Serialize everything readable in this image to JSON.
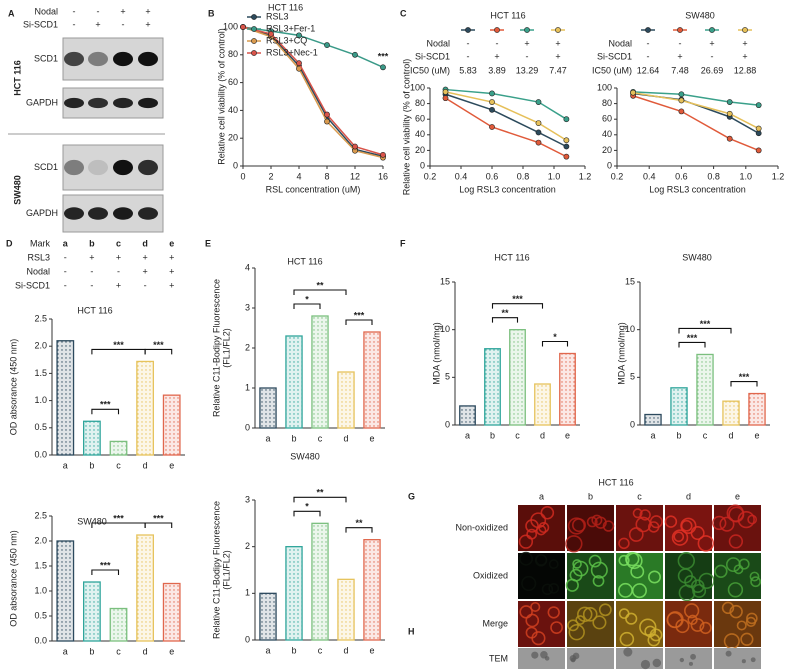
{
  "panel_labels": [
    "A",
    "B",
    "C",
    "D",
    "E",
    "F",
    "G",
    "H"
  ],
  "panel_a": {
    "header": [
      {
        "label": "Nodal",
        "cells": [
          "-",
          "-",
          "+",
          "+"
        ]
      },
      {
        "label": "Si-SCD1",
        "cells": [
          "-",
          "+",
          "-",
          "+"
        ]
      }
    ],
    "groups": [
      {
        "label": "HCT 116",
        "rows": [
          "SCD1",
          "GAPDH"
        ]
      },
      {
        "label": "SW480",
        "rows": [
          "SCD1",
          "GAPDH"
        ]
      }
    ]
  },
  "panel_d_header": {
    "rows": [
      {
        "label": "Mark",
        "cells": [
          "a",
          "b",
          "c",
          "d",
          "e"
        ]
      },
      {
        "label": "RSL3",
        "cells": [
          "-",
          "+",
          "+",
          "+",
          "+"
        ]
      },
      {
        "label": "Nodal",
        "cells": [
          "-",
          "-",
          "-",
          "+",
          "+"
        ]
      },
      {
        "label": "Si-SCD1",
        "cells": [
          "-",
          "-",
          "+",
          "-",
          "+"
        ]
      }
    ]
  },
  "panel_g": {
    "title": "HCT 116",
    "columns": [
      "a",
      "b",
      "c",
      "d",
      "e"
    ],
    "rows": [
      "Non-oxidized",
      "Oxidized",
      "Merge"
    ]
  },
  "panel_h": {
    "rows": [
      "TEM"
    ]
  },
  "chart_data": [
    {
      "type": "line",
      "title": "HCT 116",
      "x_label": "RSL concentration (uM)",
      "y_label": "Relative cell viability (% of control)",
      "categories": [
        "0",
        "2",
        "4",
        "8",
        "12",
        "16"
      ],
      "ylim": [
        0,
        100
      ],
      "yticks": [
        0,
        20,
        40,
        60,
        80,
        100
      ],
      "legend": "upper left",
      "annotation": "***",
      "series": [
        {
          "name": "RSL3",
          "color": "#2c4a5c",
          "values": [
            100,
            94,
            72,
            35,
            12,
            7
          ]
        },
        {
          "name": "RSL3+Fer-1",
          "color": "#3a9a88",
          "values": [
            100,
            97,
            94,
            87,
            80,
            71
          ]
        },
        {
          "name": "RSL3+CQ",
          "color": "#d99a4e",
          "values": [
            100,
            93,
            70,
            32,
            11,
            6
          ]
        },
        {
          "name": "RSL3+Nec-1",
          "color": "#d9544a",
          "values": [
            100,
            95,
            74,
            37,
            14,
            8
          ]
        }
      ]
    },
    {
      "type": "line",
      "title": "HCT 116",
      "x_label": "Log RSL3 concentration",
      "y_label": "Relative cell viability (% of control)",
      "header": [
        {
          "label": "Nodal",
          "cells": [
            "-",
            "-",
            "+",
            "+"
          ]
        },
        {
          "label": "Si-SCD1",
          "cells": [
            "-",
            "+",
            "-",
            "+"
          ]
        },
        {
          "label": "IC50 (uM)",
          "cells": [
            5.83,
            3.89,
            13.29,
            7.47
          ]
        }
      ],
      "x": [
        0.3,
        0.6,
        0.9,
        1.08
      ],
      "xlim": [
        0.2,
        1.2
      ],
      "xticks": [
        0.2,
        0.4,
        0.6,
        0.8,
        {
          "value": 1,
          "label": "1.0"
        },
        1.2
      ],
      "ylim": [
        0,
        100
      ],
      "yticks": [
        0,
        20,
        40,
        60,
        80,
        100
      ],
      "series": [
        {
          "color": "#2c4a5c",
          "values": [
            92,
            72,
            43,
            25
          ]
        },
        {
          "color": "#e05a3a",
          "values": [
            87,
            50,
            30,
            12
          ]
        },
        {
          "color": "#3aa08a",
          "values": [
            98,
            93,
            82,
            60
          ]
        },
        {
          "color": "#e6c05a",
          "values": [
            95,
            82,
            55,
            33
          ]
        }
      ]
    },
    {
      "type": "line",
      "title": "SW480",
      "x_label": "Log RSL3 concentration",
      "header": [
        {
          "label": "Nodal",
          "cells": [
            "-",
            "-",
            "+",
            "+"
          ]
        },
        {
          "label": "Si-SCD1",
          "cells": [
            "-",
            "+",
            "-",
            "+"
          ]
        },
        {
          "label": "IC50 (uM)",
          "cells": [
            12.64,
            7.48,
            26.69,
            12.88
          ]
        }
      ],
      "x": [
        0.3,
        0.6,
        0.9,
        1.08
      ],
      "xlim": [
        0.2,
        1.2
      ],
      "xticks": [
        0.2,
        0.4,
        0.6,
        0.8,
        {
          "value": 1,
          "label": "1.0"
        },
        1.2
      ],
      "ylim": [
        0,
        100
      ],
      "yticks": [
        0,
        20,
        40,
        60,
        80,
        100
      ],
      "series": [
        {
          "color": "#2c4a5c",
          "values": [
            93,
            85,
            63,
            42
          ]
        },
        {
          "color": "#e05a3a",
          "values": [
            90,
            70,
            35,
            20
          ]
        },
        {
          "color": "#3aa08a",
          "values": [
            95,
            92,
            82,
            78
          ]
        },
        {
          "color": "#e6c05a",
          "values": [
            94,
            84,
            67,
            48
          ]
        }
      ]
    },
    {
      "type": "bar",
      "title": "HCT 116",
      "y_label": "OD absorance (450 nm)",
      "categories": [
        "a",
        "b",
        "c",
        "d",
        "e"
      ],
      "values": [
        2.1,
        0.62,
        0.25,
        1.72,
        1.1
      ],
      "colors": [
        "#2d4a5e",
        "#2fa59b",
        "#7bbf7e",
        "#e6c35c",
        "#e0674d"
      ],
      "ylim": [
        0,
        2.5
      ],
      "yticks": [
        {
          "value": 0,
          "label": "0.0"
        },
        0.5,
        {
          "value": 1,
          "label": "1.0"
        },
        1.5,
        {
          "value": 2,
          "label": "2.0"
        },
        2.5
      ],
      "brackets": [
        {
          "from": 1,
          "to": 2,
          "label": "***"
        },
        {
          "from": 1,
          "to": 3,
          "label": "***"
        },
        {
          "from": 3,
          "to": 4,
          "label": "***"
        }
      ]
    },
    {
      "type": "bar",
      "title": "SW480",
      "y_label": "OD absorance (450 nm)",
      "categories": [
        "a",
        "b",
        "c",
        "d",
        "e"
      ],
      "values": [
        2.0,
        1.18,
        0.65,
        2.12,
        1.15
      ],
      "colors": [
        "#2d4a5e",
        "#2fa59b",
        "#7bbf7e",
        "#e6c35c",
        "#e0674d"
      ],
      "ylim": [
        0,
        2.5
      ],
      "yticks": [
        {
          "value": 0,
          "label": "0.0"
        },
        0.5,
        {
          "value": 1,
          "label": "1.0"
        },
        1.5,
        {
          "value": 2,
          "label": "2.0"
        },
        2.5
      ],
      "brackets": [
        {
          "from": 1,
          "to": 2,
          "label": "***"
        },
        {
          "from": 1,
          "to": 3,
          "label": "***"
        },
        {
          "from": 3,
          "to": 4,
          "label": "***"
        }
      ]
    },
    {
      "type": "bar",
      "title": "HCT 116",
      "y_label": [
        "Relative C11-Bodipy Fluorescence",
        "(FL1/FL2)"
      ],
      "categories": [
        "a",
        "b",
        "c",
        "d",
        "e"
      ],
      "values": [
        1,
        2.3,
        2.8,
        1.4,
        2.4
      ],
      "colors": [
        "#2d4a5e",
        "#2fa59b",
        "#7bbf7e",
        "#e6c35c",
        "#e0674d"
      ],
      "ylim": [
        0,
        4
      ],
      "yticks": [
        0,
        1,
        2,
        3,
        4
      ],
      "brackets": [
        {
          "from": 1,
          "to": 2,
          "label": "*"
        },
        {
          "from": 1,
          "to": 3,
          "label": "**"
        },
        {
          "from": 3,
          "to": 4,
          "label": "***"
        }
      ]
    },
    {
      "type": "bar",
      "title": "SW480",
      "y_label": [
        "Relative C11-Bodipy Fluorescence",
        "(FL1/FL2)"
      ],
      "categories": [
        "a",
        "b",
        "c",
        "d",
        "e"
      ],
      "values": [
        1,
        2.0,
        2.5,
        1.3,
        2.15
      ],
      "colors": [
        "#2d4a5e",
        "#2fa59b",
        "#7bbf7e",
        "#e6c35c",
        "#e0674d"
      ],
      "ylim": [
        0,
        3
      ],
      "yticks": [
        0,
        1,
        2,
        3
      ],
      "brackets": [
        {
          "from": 1,
          "to": 2,
          "label": "*"
        },
        {
          "from": 1,
          "to": 3,
          "label": "**"
        },
        {
          "from": 3,
          "to": 4,
          "label": "**"
        }
      ]
    },
    {
      "type": "bar",
      "title": "HCT 116",
      "y_label": "MDA (nmol/mg)",
      "categories": [
        "a",
        "b",
        "c",
        "d",
        "e"
      ],
      "values": [
        2.0,
        8.0,
        10.0,
        4.3,
        7.5
      ],
      "colors": [
        "#2d4a5e",
        "#2fa59b",
        "#7bbf7e",
        "#e6c35c",
        "#e0674d"
      ],
      "ylim": [
        0,
        15
      ],
      "yticks": [
        0,
        5,
        10,
        15
      ],
      "brackets": [
        {
          "from": 1,
          "to": 2,
          "label": "**"
        },
        {
          "from": 1,
          "to": 3,
          "label": "***"
        },
        {
          "from": 3,
          "to": 4,
          "label": "*"
        }
      ]
    },
    {
      "type": "bar",
      "title": "SW480",
      "y_label": "MDA (nmol/mg)",
      "categories": [
        "a",
        "b",
        "c",
        "d",
        "e"
      ],
      "values": [
        1.1,
        3.9,
        7.4,
        2.5,
        3.3
      ],
      "colors": [
        "#2d4a5e",
        "#2fa59b",
        "#7bbf7e",
        "#e6c35c",
        "#e0674d"
      ],
      "ylim": [
        0,
        15
      ],
      "yticks": [
        0,
        5,
        10,
        15
      ],
      "brackets": [
        {
          "from": 1,
          "to": 2,
          "label": "***"
        },
        {
          "from": 1,
          "to": 3,
          "label": "***"
        },
        {
          "from": 3,
          "to": 4,
          "label": "***"
        }
      ]
    }
  ]
}
